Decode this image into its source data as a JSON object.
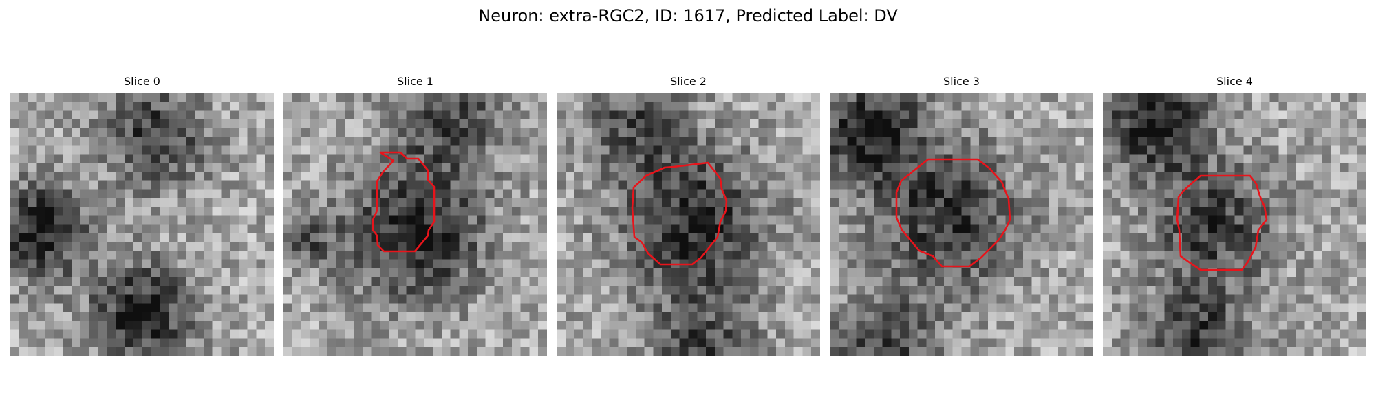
{
  "figure": {
    "title": "Neuron: extra-RGC2, ID: 1617, Predicted Label: DV"
  },
  "panels": [
    {
      "title": "Slice 0",
      "has_contour": false,
      "image": "grayscale-microscopy-patch"
    },
    {
      "title": "Slice 1",
      "has_contour": true,
      "image": "grayscale-microscopy-patch"
    },
    {
      "title": "Slice 2",
      "has_contour": true,
      "image": "grayscale-microscopy-patch"
    },
    {
      "title": "Slice 3",
      "has_contour": true,
      "image": "grayscale-microscopy-patch"
    },
    {
      "title": "Slice 4",
      "has_contour": true,
      "image": "grayscale-microscopy-patch"
    }
  ],
  "colors": {
    "contour": "#e8141b",
    "background": "#ffffff"
  }
}
